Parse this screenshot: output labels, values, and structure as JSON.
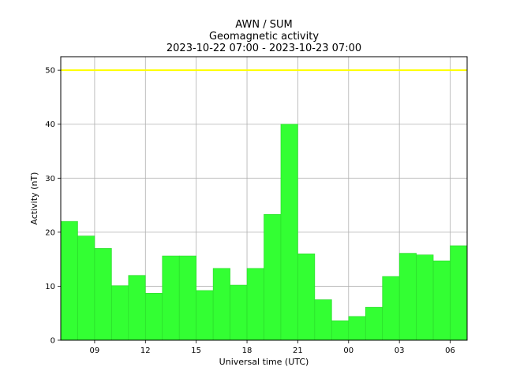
{
  "chart_data": {
    "type": "bar",
    "title_lines": [
      "AWN / SUM",
      "Geomagnetic activity",
      "2023-10-22 07:00 - 2023-10-23 07:00"
    ],
    "xlabel": "Universal time (UTC)",
    "ylabel": "Activity (nT)",
    "x_tick_labels": [
      "09",
      "12",
      "15",
      "18",
      "21",
      "00",
      "03",
      "06"
    ],
    "x_tick_hours_from_start": [
      2,
      5,
      8,
      11,
      14,
      17,
      20,
      23
    ],
    "hours": [
      "07",
      "08",
      "09",
      "10",
      "11",
      "12",
      "13",
      "14",
      "15",
      "16",
      "17",
      "18",
      "19",
      "20",
      "21",
      "22",
      "23",
      "00",
      "01",
      "02",
      "03",
      "04",
      "05",
      "06"
    ],
    "values": [
      22.0,
      19.3,
      17.0,
      10.1,
      12.0,
      8.7,
      15.6,
      15.6,
      9.2,
      13.3,
      10.2,
      13.3,
      23.3,
      40.0,
      16.0,
      7.5,
      3.6,
      4.4,
      6.1,
      11.8,
      16.1,
      15.8,
      14.7,
      17.5
    ],
    "bar_color": "#33ff33",
    "threshold": {
      "value": 50,
      "color": "#ffff00"
    },
    "ylim": [
      0,
      52.5
    ],
    "xlim": [
      0,
      24
    ],
    "y_ticks": [
      0,
      10,
      20,
      30,
      40,
      50
    ],
    "grid": true
  }
}
